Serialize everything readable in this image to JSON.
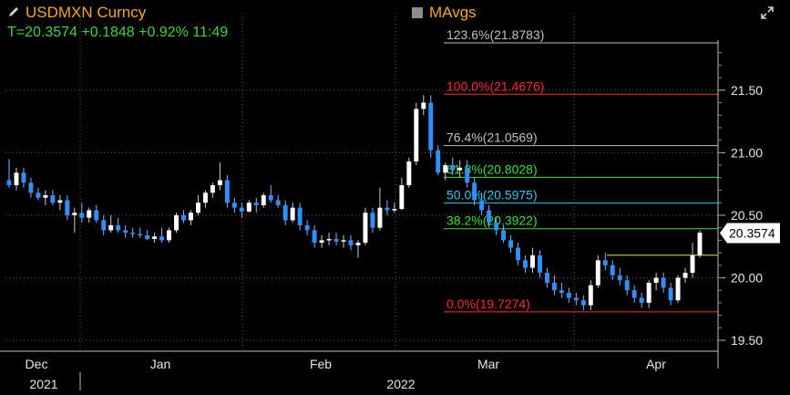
{
  "header": {
    "security": "USDMXN Curncy",
    "quote": "T=20.3574 +0.1848 +0.92% 11:49",
    "mavgs_label": "MAvgs"
  },
  "colors": {
    "up": "#ffffff",
    "down": "#2f8fff",
    "title": "#f5a623",
    "quote": "#3fd23f",
    "grid": "#5a5a5a"
  },
  "chart_data": {
    "type": "candlestick",
    "title": "",
    "ylim": [
      19.42,
      21.9
    ],
    "yticks": [
      "19.50",
      "20.00",
      "20.50",
      "21.00",
      "21.50"
    ],
    "ytick_values": [
      19.5,
      20.0,
      20.5,
      21.0,
      21.5
    ],
    "x_months": [
      "Dec",
      "Jan",
      "Feb",
      "Mar",
      "Apr"
    ],
    "x_years": [
      "2021",
      "2022"
    ],
    "last_price": 20.3574,
    "last_price_label": "20.3574",
    "grid": true,
    "fibonacci": [
      {
        "label": "123.6%(21.8783)",
        "value": 21.8783,
        "color": "#c0c0c0"
      },
      {
        "label": "100.0%(21.4676)",
        "value": 21.4676,
        "color": "#ff2a2a"
      },
      {
        "label": "76.4%(21.0569)",
        "value": 21.0569,
        "color": "#c0c0c0"
      },
      {
        "label": "61.8%(20.8028)",
        "value": 20.8028,
        "color": "#38e038"
      },
      {
        "label": "50.0%(20.5975)",
        "value": 20.5975,
        "color": "#2ec8f0"
      },
      {
        "label": "38.2%(20.3922)",
        "value": 20.3922,
        "color": "#38e038"
      },
      {
        "label": "0.0%(19.7274)",
        "value": 19.7274,
        "color": "#ff2a2a"
      }
    ],
    "ohlc": [
      [
        20.78,
        20.95,
        20.72,
        20.74
      ],
      [
        20.74,
        20.88,
        20.7,
        20.84
      ],
      [
        20.84,
        20.88,
        20.72,
        20.76
      ],
      [
        20.76,
        20.8,
        20.64,
        20.68
      ],
      [
        20.68,
        20.72,
        20.62,
        20.64
      ],
      [
        20.64,
        20.7,
        20.58,
        20.66
      ],
      [
        20.66,
        20.7,
        20.58,
        20.6
      ],
      [
        20.6,
        20.66,
        20.54,
        20.62
      ],
      [
        20.62,
        20.66,
        20.46,
        20.5
      ],
      [
        20.5,
        20.56,
        20.36,
        20.52
      ],
      [
        20.52,
        20.6,
        20.44,
        20.48
      ],
      [
        20.48,
        20.56,
        20.44,
        20.54
      ],
      [
        20.54,
        20.58,
        20.44,
        20.46
      ],
      [
        20.46,
        20.5,
        20.34,
        20.38
      ],
      [
        20.38,
        20.5,
        20.36,
        20.42
      ],
      [
        20.42,
        20.48,
        20.36,
        20.38
      ],
      [
        20.38,
        20.42,
        20.32,
        20.36
      ],
      [
        20.36,
        20.4,
        20.32,
        20.35
      ],
      [
        20.35,
        20.4,
        20.32,
        20.34
      ],
      [
        20.34,
        20.38,
        20.3,
        20.31
      ],
      [
        20.31,
        20.36,
        20.28,
        20.33
      ],
      [
        20.33,
        20.4,
        20.28,
        20.3
      ],
      [
        20.3,
        20.4,
        20.28,
        20.38
      ],
      [
        20.38,
        20.52,
        20.36,
        20.5
      ],
      [
        20.5,
        20.54,
        20.44,
        20.46
      ],
      [
        20.46,
        20.54,
        20.42,
        20.52
      ],
      [
        20.52,
        20.66,
        20.5,
        20.6
      ],
      [
        20.6,
        20.7,
        20.56,
        20.68
      ],
      [
        20.68,
        20.76,
        20.64,
        20.74
      ],
      [
        20.74,
        20.92,
        20.7,
        20.78
      ],
      [
        20.78,
        20.82,
        20.56,
        20.6
      ],
      [
        20.6,
        20.64,
        20.52,
        20.56
      ],
      [
        20.56,
        20.6,
        20.48,
        20.53
      ],
      [
        20.53,
        20.62,
        20.52,
        20.6
      ],
      [
        20.6,
        20.64,
        20.52,
        20.58
      ],
      [
        20.58,
        20.68,
        20.56,
        20.66
      ],
      [
        20.66,
        20.74,
        20.6,
        20.62
      ],
      [
        20.62,
        20.66,
        20.56,
        20.58
      ],
      [
        20.58,
        20.62,
        20.42,
        20.46
      ],
      [
        20.46,
        20.6,
        20.44,
        20.56
      ],
      [
        20.56,
        20.6,
        20.38,
        20.42
      ],
      [
        20.42,
        20.46,
        20.34,
        20.38
      ],
      [
        20.38,
        20.42,
        20.24,
        20.28
      ],
      [
        20.28,
        20.34,
        20.24,
        20.3
      ],
      [
        20.3,
        20.36,
        20.26,
        20.31
      ],
      [
        20.31,
        20.36,
        20.26,
        20.29
      ],
      [
        20.29,
        20.34,
        20.24,
        20.3
      ],
      [
        20.3,
        20.34,
        20.22,
        20.26
      ],
      [
        20.26,
        20.3,
        20.16,
        20.28
      ],
      [
        20.28,
        20.56,
        20.26,
        20.52
      ],
      [
        20.52,
        20.56,
        20.36,
        20.4
      ],
      [
        20.4,
        20.72,
        20.38,
        20.56
      ],
      [
        20.56,
        20.62,
        20.5,
        20.54
      ],
      [
        20.54,
        20.6,
        20.52,
        20.55
      ],
      [
        20.55,
        20.8,
        20.54,
        20.74
      ],
      [
        20.74,
        20.96,
        20.72,
        20.93
      ],
      [
        20.93,
        21.4,
        20.9,
        21.35
      ],
      [
        21.35,
        21.46,
        21.3,
        21.4
      ],
      [
        21.4,
        21.46,
        20.96,
        21.02
      ],
      [
        21.02,
        21.06,
        20.82,
        20.84
      ],
      [
        20.84,
        20.92,
        20.78,
        20.9
      ],
      [
        20.9,
        20.96,
        20.82,
        20.86
      ],
      [
        20.86,
        20.94,
        20.8,
        20.88
      ],
      [
        20.88,
        20.94,
        20.72,
        20.76
      ],
      [
        20.76,
        20.8,
        20.58,
        20.62
      ],
      [
        20.62,
        20.68,
        20.5,
        20.54
      ],
      [
        20.54,
        20.58,
        20.4,
        20.44
      ],
      [
        20.44,
        20.48,
        20.34,
        20.38
      ],
      [
        20.38,
        20.42,
        20.28,
        20.3
      ],
      [
        20.3,
        20.34,
        20.2,
        20.24
      ],
      [
        20.24,
        20.28,
        20.1,
        20.14
      ],
      [
        20.14,
        20.18,
        20.04,
        20.08
      ],
      [
        20.08,
        20.24,
        20.04,
        20.18
      ],
      [
        20.18,
        20.22,
        20.0,
        20.04
      ],
      [
        20.04,
        20.08,
        19.92,
        19.96
      ],
      [
        19.96,
        20.02,
        19.86,
        19.9
      ],
      [
        19.9,
        19.96,
        19.84,
        19.88
      ],
      [
        19.88,
        19.92,
        19.8,
        19.84
      ],
      [
        19.84,
        19.88,
        19.78,
        19.82
      ],
      [
        19.82,
        19.86,
        19.74,
        19.78
      ],
      [
        19.78,
        19.98,
        19.74,
        19.94
      ],
      [
        19.94,
        20.18,
        19.92,
        20.14
      ],
      [
        20.14,
        20.2,
        20.06,
        20.1
      ],
      [
        20.1,
        20.14,
        19.98,
        20.02
      ],
      [
        20.02,
        20.08,
        19.94,
        19.98
      ],
      [
        19.98,
        20.02,
        19.86,
        19.9
      ],
      [
        19.9,
        19.94,
        19.8,
        19.84
      ],
      [
        19.84,
        19.88,
        19.76,
        19.8
      ],
      [
        19.8,
        19.98,
        19.76,
        19.96
      ],
      [
        19.96,
        20.04,
        19.9,
        20.0
      ],
      [
        20.0,
        20.04,
        19.88,
        19.92
      ],
      [
        19.92,
        19.96,
        19.78,
        19.82
      ],
      [
        19.82,
        20.02,
        19.8,
        20.0
      ],
      [
        20.0,
        20.08,
        19.96,
        20.04
      ],
      [
        20.04,
        20.28,
        20.0,
        20.18
      ],
      [
        20.18,
        20.38,
        20.16,
        20.36
      ]
    ]
  }
}
